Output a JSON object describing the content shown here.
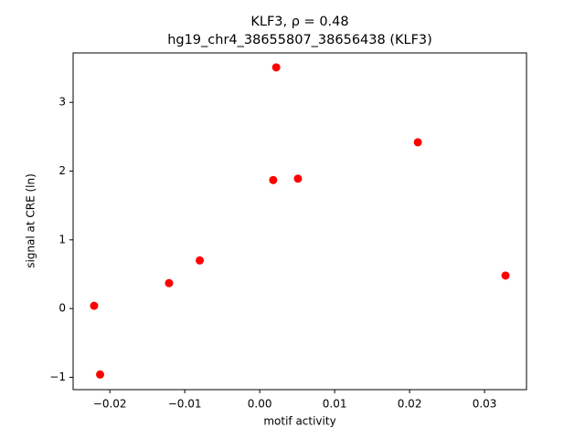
{
  "chart_data": {
    "type": "scatter",
    "title": "KLF3, ρ = 0.48",
    "subtitle": "hg19_chr4_38655807_38656438 (KLF3)",
    "x_label": "motif activity",
    "y_label": "signal at CRE (ln)",
    "color": "#ff0000",
    "x": [
      -0.0221,
      -0.0213,
      -0.0121,
      -0.008,
      0.0018,
      0.0022,
      0.0051,
      0.0211,
      0.0328
    ],
    "y": [
      0.04,
      -0.96,
      0.37,
      0.7,
      1.87,
      3.51,
      1.89,
      2.42,
      0.48
    ],
    "xlim": [
      -0.0249,
      0.0356
    ],
    "ylim": [
      -1.18,
      3.72
    ],
    "xticks": [
      {
        "value": -0.02,
        "label": "−0.02"
      },
      {
        "value": -0.01,
        "label": "−0.01"
      },
      {
        "value": 0,
        "label": "0.00"
      },
      0.01,
      0.02,
      0.03
    ],
    "yticks": [
      {
        "value": -1,
        "label": "−1"
      },
      0,
      1,
      2,
      3
    ]
  }
}
